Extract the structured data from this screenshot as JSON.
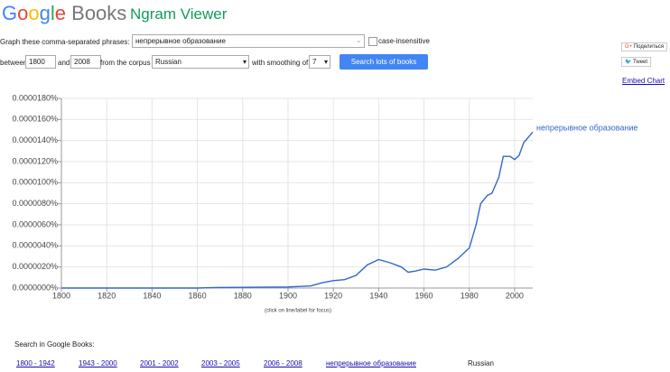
{
  "header": {
    "logo": "Google",
    "product": "Books",
    "title": "Ngram Viewer"
  },
  "form": {
    "phrases_label": "Graph these comma-separated phrases:",
    "phrases": "непрерывное образование",
    "case_insensitive": "case-insensitive",
    "between": "between",
    "start_year": "1800",
    "and": "and",
    "end_year": "2008",
    "corpus_label": "from the corpus",
    "corpus": "Russian",
    "smoothing_label": "with smoothing of",
    "smoothing": "7",
    "button": "Search lots of books"
  },
  "share": {
    "share": "Поделиться",
    "tweet": "Tweet",
    "embed": "Embed Chart"
  },
  "chart_data": {
    "type": "line",
    "note": "(click on line/label for focus)",
    "x": [
      1800,
      1860,
      1868,
      1900,
      1910,
      1915,
      1920,
      1925,
      1930,
      1935,
      1940,
      1945,
      1950,
      1953,
      1956,
      1960,
      1965,
      1970,
      1975,
      1980,
      1983,
      1985,
      1988,
      1990,
      1993,
      1995,
      1998,
      2000,
      2002,
      2004,
      2008
    ],
    "series": [
      {
        "name": "непрерывное образование",
        "color": "#3366cc",
        "values": [
          0,
          0,
          5e-08,
          1e-07,
          2e-07,
          5e-07,
          7e-07,
          8e-07,
          1.2e-06,
          2.2e-06,
          2.7e-06,
          2.4e-06,
          2e-06,
          1.5e-06,
          1.6e-06,
          1.8e-06,
          1.7e-06,
          2e-06,
          2.8e-06,
          3.8e-06,
          6e-06,
          8e-06,
          8.8e-06,
          9e-06,
          1.05e-05,
          1.25e-05,
          1.25e-05,
          1.22e-05,
          1.26e-05,
          1.38e-05,
          1.48e-05
        ]
      }
    ],
    "xlim": [
      1800,
      2008
    ],
    "xticks": [
      1800,
      1820,
      1840,
      1860,
      1880,
      1900,
      1920,
      1940,
      1960,
      1980,
      2000
    ],
    "ylim": [
      0,
      1.8e-05
    ],
    "yticks": [
      {
        "value": 0,
        "label": "0.0000000%"
      },
      {
        "value": 2e-06,
        "label": "0.0000020%"
      },
      {
        "value": 4e-06,
        "label": "0.0000040%"
      },
      {
        "value": 6e-06,
        "label": "0.0000060%"
      },
      {
        "value": 8e-06,
        "label": "0.0000080%"
      },
      {
        "value": 1e-05,
        "label": "0.0000100%"
      },
      {
        "value": 1.2e-05,
        "label": "0.0000120%"
      },
      {
        "value": 1.4e-05,
        "label": "0.0000140%"
      },
      {
        "value": 1.6e-05,
        "label": "0.0000160%"
      },
      {
        "value": 1.8e-05,
        "label": "0.0000180%"
      }
    ],
    "grid": true
  },
  "search": {
    "label": "Search in Google Books:",
    "links": [
      "1800 - 1942",
      "1943 - 2000",
      "2001 - 2002",
      "2003 - 2005",
      "2006 - 2008",
      "непрерывное образование"
    ],
    "corpus": "Russian"
  }
}
